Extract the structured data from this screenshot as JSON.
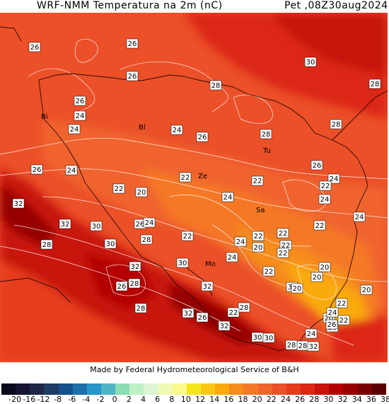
{
  "header": {
    "title": "WRF-NMM Temperatura na 2m (nC)",
    "valid_time": "Pet ,08Z30aug2024"
  },
  "footer": {
    "credit": "Made by Federal Hydrometeorological Service of B&H"
  },
  "colorbar": {
    "colors": [
      "#0a0a1e",
      "#141432",
      "#1e2846",
      "#1e3c64",
      "#14508c",
      "#1e6eaa",
      "#2896c8",
      "#50b4c8",
      "#8cdcb4",
      "#bef0c8",
      "#dcf5d2",
      "#f0fab4",
      "#fafa8c",
      "#f5e61e",
      "#fac814",
      "#faaa0a",
      "#f58c1e",
      "#f57828",
      "#f0642d",
      "#eb5028",
      "#e63c1e",
      "#dc2814",
      "#c8140a",
      "#b40000",
      "#960000",
      "#780000",
      "#5a0000"
    ],
    "ticks": [
      "-20",
      "-16",
      "-12",
      "-8",
      "-6",
      "-4",
      "-2",
      "0",
      "2",
      "4",
      "6",
      "8",
      "10",
      "12",
      "14",
      "16",
      "18",
      "20",
      "22",
      "24",
      "26",
      "28",
      "30",
      "32",
      "34",
      "36",
      "38"
    ]
  },
  "map": {
    "city_labels": [
      {
        "id": "bi1",
        "text": "Bi"
      },
      {
        "id": "bl",
        "text": "Bl"
      },
      {
        "id": "tu",
        "text": "Tu"
      },
      {
        "id": "ze",
        "text": "Ze"
      },
      {
        "id": "sa",
        "text": "Sa"
      },
      {
        "id": "mo",
        "text": "Mo"
      }
    ],
    "contour_labels": [
      "26",
      "26",
      "26",
      "28",
      "30",
      "28",
      "26",
      "24",
      "24",
      "28",
      "28",
      "24",
      "26",
      "26",
      "24",
      "22",
      "22",
      "22",
      "24",
      "26",
      "24",
      "22",
      "20",
      "22",
      "24",
      "24",
      "22",
      "32",
      "32",
      "30",
      "26",
      "24",
      "22",
      "24",
      "22",
      "22",
      "22",
      "28",
      "30",
      "28",
      "30",
      "32",
      "24",
      "20",
      "22",
      "32",
      "26",
      "28",
      "30",
      "20",
      "20",
      "32",
      "26",
      "28",
      "22",
      "28",
      "32",
      "28",
      "30",
      "32",
      "26",
      "30",
      "28",
      "20",
      "26",
      "20",
      "20",
      "22",
      "24",
      "24",
      "22"
    ]
  }
}
